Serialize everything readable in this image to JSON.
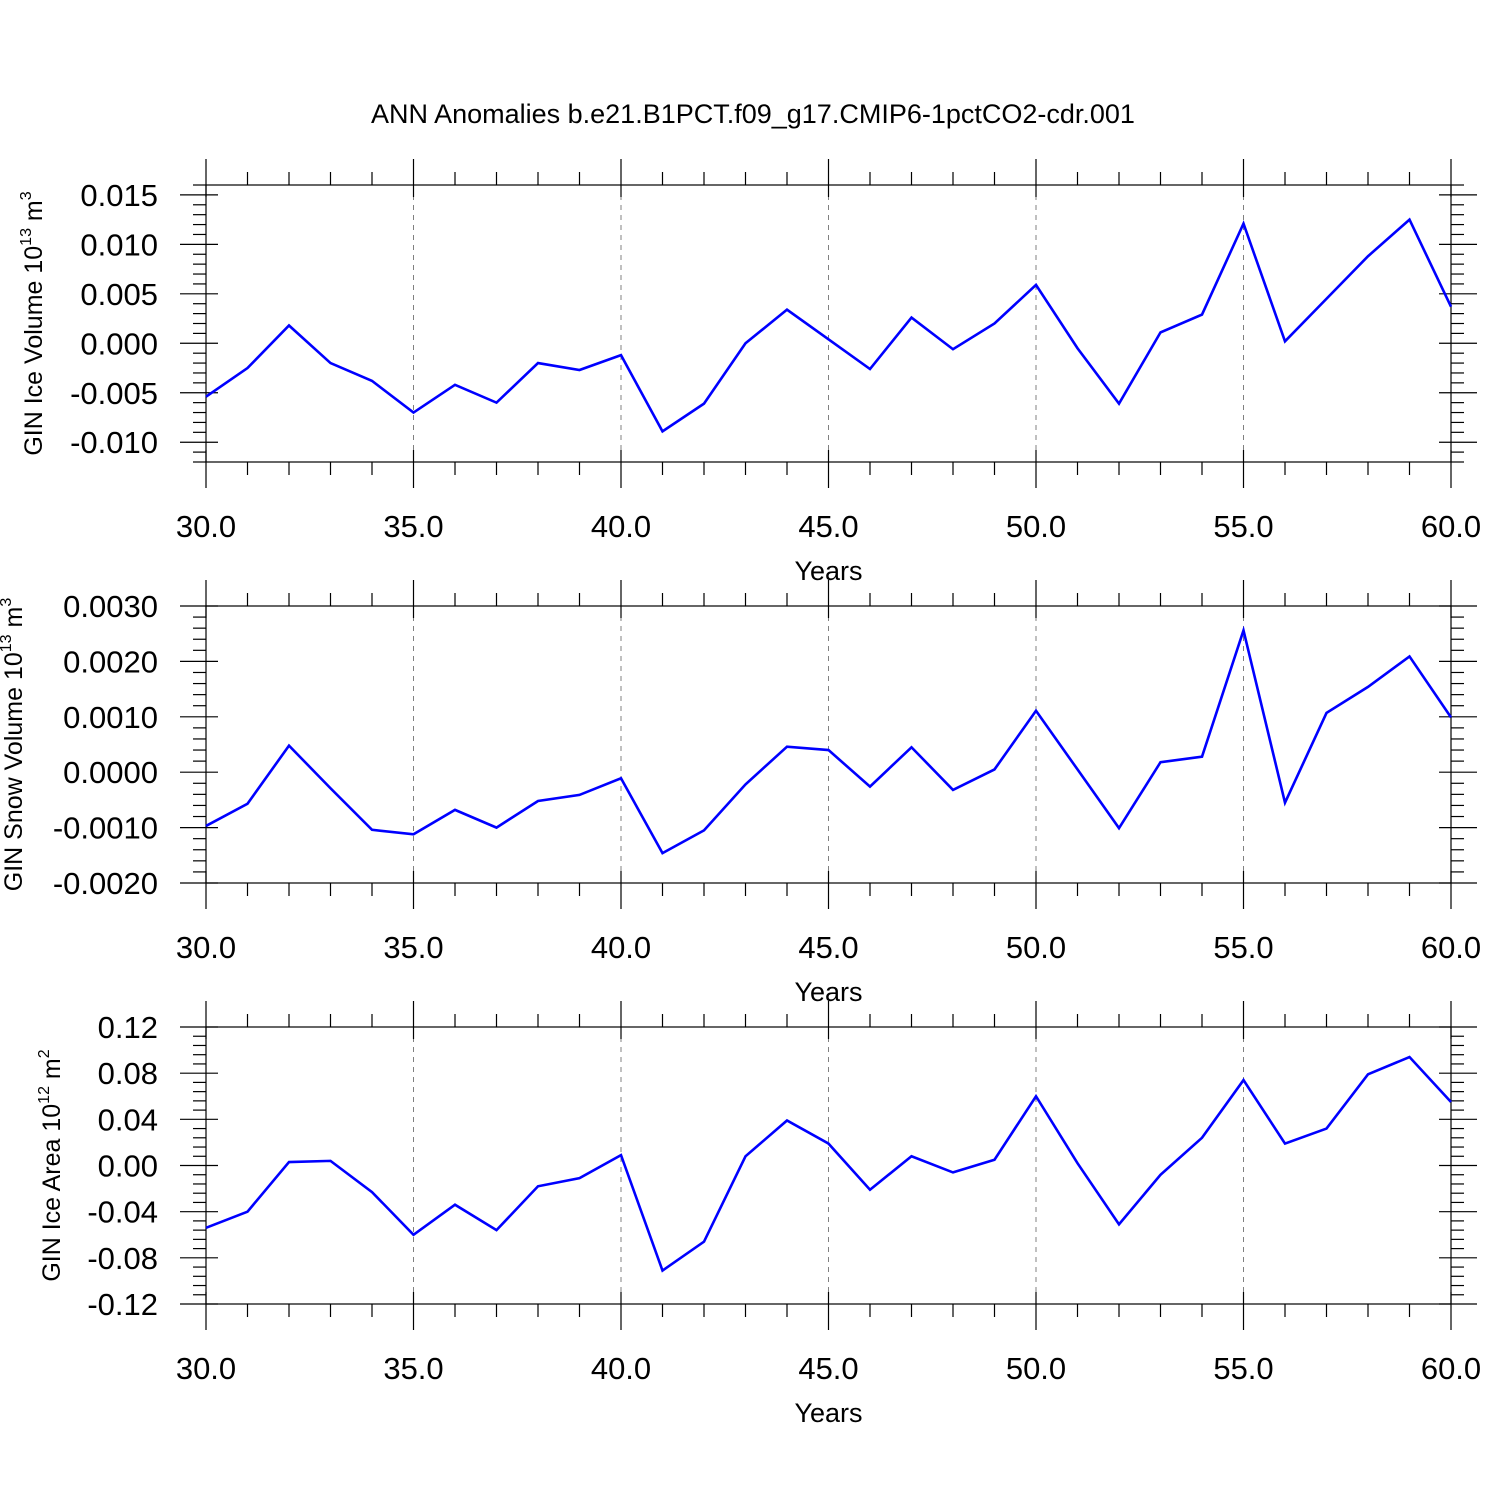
{
  "title": "ANN Anomalies b.e21.B1PCT.f09_g17.CMIP6-1pctCO2-cdr.001",
  "colors": {
    "line": "#0000ff",
    "axis": "#000000",
    "grid": "#808080",
    "background": "#ffffff"
  },
  "chart_data": [
    {
      "type": "line",
      "xlabel": "Years",
      "ylabel": {
        "text": "GIN Ice Volume 10",
        "exponent": "13",
        "unit": "m",
        "unit_exponent": "3"
      },
      "xlim": [
        30,
        60
      ],
      "ylim": [
        -0.012,
        0.016
      ],
      "xticks": [
        30,
        35,
        40,
        45,
        50,
        55,
        60
      ],
      "xtick_labels": [
        "30.0",
        "35.0",
        "40.0",
        "45.0",
        "50.0",
        "55.0",
        "60.0"
      ],
      "yticks": [
        -0.01,
        -0.005,
        0.0,
        0.005,
        0.01,
        0.015
      ],
      "ytick_labels": [
        "-0.010",
        "-0.005",
        "0.000",
        "0.005",
        "0.010",
        "0.015"
      ],
      "grid": "vertical dashed at major x ticks",
      "x": [
        30,
        31,
        32,
        33,
        34,
        35,
        36,
        37,
        38,
        39,
        40,
        41,
        42,
        43,
        44,
        45,
        46,
        47,
        48,
        49,
        50,
        51,
        52,
        53,
        54,
        55,
        56,
        57,
        58,
        59,
        60
      ],
      "series": [
        {
          "values": [
            -0.0054,
            -0.0025,
            0.0018,
            -0.002,
            -0.0038,
            -0.007,
            -0.0042,
            -0.006,
            -0.002,
            -0.0027,
            -0.0012,
            -0.0089,
            -0.0061,
            0.0,
            0.0034,
            0.0004,
            -0.0026,
            0.0026,
            -0.0006,
            0.002,
            0.0059,
            -0.0005,
            -0.0061,
            0.0011,
            0.0029,
            0.0121,
            0.0002,
            0.0045,
            0.0088,
            0.0125,
            0.0037
          ]
        }
      ]
    },
    {
      "type": "line",
      "xlabel": "Years",
      "ylabel": {
        "text": "GIN Snow Volume 10",
        "exponent": "13",
        "unit": "m",
        "unit_exponent": "3"
      },
      "xlim": [
        30,
        60
      ],
      "ylim": [
        -0.002,
        0.003
      ],
      "xticks": [
        30,
        35,
        40,
        45,
        50,
        55,
        60
      ],
      "xtick_labels": [
        "30.0",
        "35.0",
        "40.0",
        "45.0",
        "50.0",
        "55.0",
        "60.0"
      ],
      "yticks": [
        -0.002,
        -0.001,
        0.0,
        0.001,
        0.002,
        0.003
      ],
      "ytick_labels": [
        "-0.0020",
        "-0.0010",
        "0.0000",
        "0.0010",
        "0.0020",
        "0.0030"
      ],
      "grid": "vertical dashed at major x ticks",
      "x": [
        30,
        31,
        32,
        33,
        34,
        35,
        36,
        37,
        38,
        39,
        40,
        41,
        42,
        43,
        44,
        45,
        46,
        47,
        48,
        49,
        50,
        51,
        52,
        53,
        54,
        55,
        56,
        57,
        58,
        59,
        60
      ],
      "series": [
        {
          "values": [
            -0.00097,
            -0.00057,
            0.00048,
            -0.00029,
            -0.00104,
            -0.00112,
            -0.00068,
            -0.001,
            -0.00052,
            -0.00041,
            -0.00011,
            -0.00146,
            -0.00105,
            -0.00022,
            0.00046,
            0.0004,
            -0.00026,
            0.00045,
            -0.00032,
            5e-05,
            0.00111,
            5e-05,
            -0.00101,
            0.00018,
            0.00028,
            0.00256,
            -0.00055,
            0.00107,
            0.00154,
            0.00209,
            0.00099
          ]
        }
      ]
    },
    {
      "type": "line",
      "xlabel": "Years",
      "ylabel": {
        "text": "GIN Ice Area 10",
        "exponent": "12",
        "unit": "m",
        "unit_exponent": "2"
      },
      "xlim": [
        30,
        60
      ],
      "ylim": [
        -0.12,
        0.12
      ],
      "xticks": [
        30,
        35,
        40,
        45,
        50,
        55,
        60
      ],
      "xtick_labels": [
        "30.0",
        "35.0",
        "40.0",
        "45.0",
        "50.0",
        "55.0",
        "60.0"
      ],
      "yticks": [
        -0.12,
        -0.08,
        -0.04,
        0.0,
        0.04,
        0.08,
        0.12
      ],
      "ytick_labels": [
        "-0.12",
        "-0.08",
        "-0.04",
        "0.00",
        "0.04",
        "0.08",
        "0.12"
      ],
      "grid": "vertical dashed at major x ticks",
      "x": [
        30,
        31,
        32,
        33,
        34,
        35,
        36,
        37,
        38,
        39,
        40,
        41,
        42,
        43,
        44,
        45,
        46,
        47,
        48,
        49,
        50,
        51,
        52,
        53,
        54,
        55,
        56,
        57,
        58,
        59,
        60
      ],
      "series": [
        {
          "values": [
            -0.054,
            -0.04,
            0.003,
            0.004,
            -0.023,
            -0.06,
            -0.034,
            -0.056,
            -0.018,
            -0.011,
            0.009,
            -0.091,
            -0.066,
            0.008,
            0.039,
            0.019,
            -0.021,
            0.008,
            -0.006,
            0.005,
            0.06,
            0.002,
            -0.051,
            -0.008,
            0.024,
            0.074,
            0.019,
            0.032,
            0.079,
            0.094,
            0.055
          ]
        }
      ]
    }
  ]
}
